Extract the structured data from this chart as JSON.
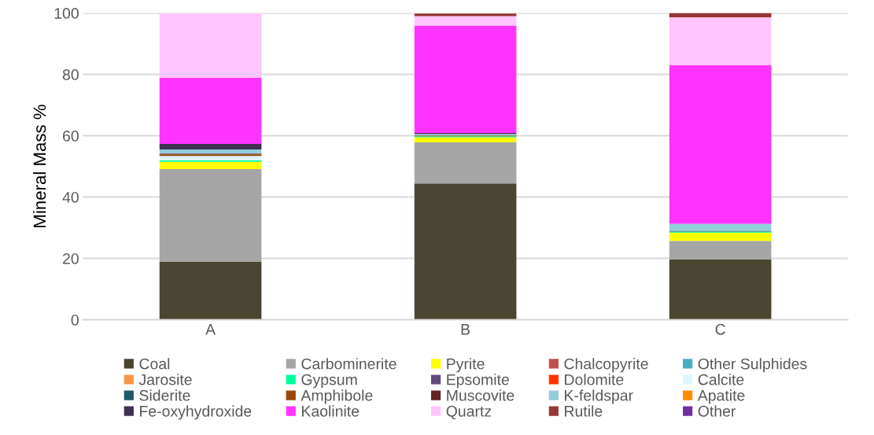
{
  "chart_data": {
    "type": "bar",
    "stacked": true,
    "ylabel": "Mineral Mass %",
    "categories": [
      "A",
      "B",
      "C"
    ],
    "ylim": [
      0,
      100
    ],
    "yticks": [
      0,
      20,
      40,
      60,
      80,
      100
    ],
    "grid": "y",
    "legend": "bottom",
    "series": [
      {
        "name": "Coal",
        "color": "#4a4530",
        "values": [
          19.0,
          44.4,
          19.6
        ]
      },
      {
        "name": "Carbominerite",
        "color": "#a6a6a6",
        "values": [
          30.1,
          13.4,
          6.1
        ]
      },
      {
        "name": "Pyrite",
        "color": "#ffff00",
        "values": [
          2.4,
          1.7,
          2.7
        ]
      },
      {
        "name": "Chalcopyrite",
        "color": "#c0504d",
        "values": [
          0,
          0,
          0
        ]
      },
      {
        "name": "Other Sulphides",
        "color": "#4bacc6",
        "values": [
          0,
          0,
          0
        ]
      },
      {
        "name": "Jarosite",
        "color": "#f79646",
        "values": [
          0,
          0,
          0
        ]
      },
      {
        "name": "Gypsum",
        "color": "#00ff99",
        "values": [
          0.5,
          0.3,
          0.3
        ]
      },
      {
        "name": "Epsomite",
        "color": "#604a7b",
        "values": [
          0,
          0,
          0
        ]
      },
      {
        "name": "Dolomite",
        "color": "#ff3300",
        "values": [
          0,
          0,
          0
        ]
      },
      {
        "name": "Calcite",
        "color": "#ddf5fb",
        "values": [
          1.4,
          null,
          0
        ]
      },
      {
        "name": "Siderite",
        "color": "#215968",
        "values": [
          0,
          0,
          0.3
        ]
      },
      {
        "name": "Amphibole",
        "color": "#984807",
        "values": [
          0.5,
          0.3,
          0
        ]
      },
      {
        "name": "Muscovite",
        "color": "#632523",
        "values": [
          0.3,
          0,
          0
        ]
      },
      {
        "name": "K-feldspar",
        "color": "#92cddc",
        "values": [
          1.3,
          0.5,
          2.3
        ]
      },
      {
        "name": "Apatite",
        "color": "#ff8c00",
        "values": [
          0,
          0,
          0
        ]
      },
      {
        "name": "Fe-oxyhydroxide",
        "color": "#3f3151",
        "values": [
          1.8,
          0.3,
          0
        ]
      },
      {
        "name": "Kaolinite",
        "color": "#ff33ff",
        "values": [
          21.6,
          35.0,
          51.7
        ]
      },
      {
        "name": "Quartz",
        "color": "#ffc5ff",
        "values": [
          20.9,
          3.1,
          15.6
        ]
      },
      {
        "name": "Rutile",
        "color": "#953735",
        "values": [
          null,
          0.8,
          1.4
        ]
      },
      {
        "name": "Other",
        "color": "#7030a0",
        "values": [
          0,
          0,
          0
        ]
      }
    ]
  }
}
